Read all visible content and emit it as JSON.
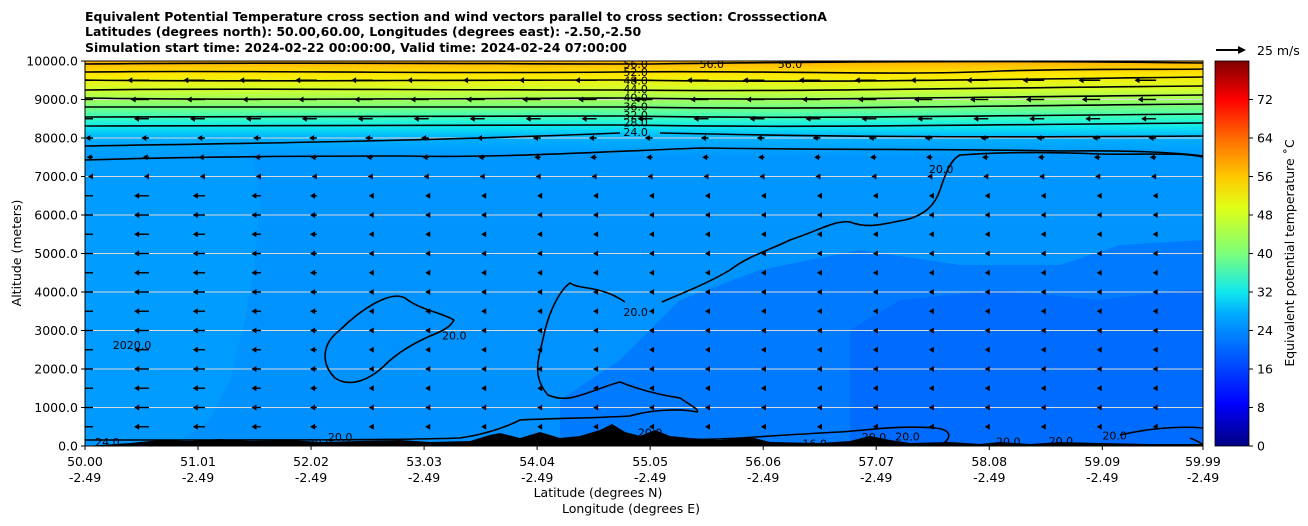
{
  "chart_data": {
    "type": "heatmap",
    "title_lines": [
      "Equivalent Potential Temperature cross section and wind vectors parallel to cross section: CrosssectionA",
      "Latitudes (degrees north): 50.00,60.00, Longitudes (degrees east): -2.50,-2.50",
      "Simulation start time: 2024-02-22 00:00:00, Valid time: 2024-02-24 07:00:00"
    ],
    "ylabel": "Altitude (meters)",
    "xlabel_lat": "Latitude (degrees N)",
    "xlabel_lon": "Longitude (degrees E)",
    "ylim": [
      0,
      10000
    ],
    "y_ticks": [
      "0.0",
      "1000.0",
      "2000.0",
      "3000.0",
      "4000.0",
      "5000.0",
      "6000.0",
      "7000.0",
      "8000.0",
      "9000.0",
      "10000.0"
    ],
    "x_ticks_lat": [
      "50.00",
      "51.01",
      "52.02",
      "53.03",
      "54.04",
      "55.05",
      "56.06",
      "57.07",
      "58.08",
      "59.09",
      "59.99"
    ],
    "x_ticks_lon": [
      "-2.49",
      "-2.49",
      "-2.49",
      "-2.49",
      "-2.49",
      "-2.49",
      "-2.49",
      "-2.49",
      "-2.49",
      "-2.49",
      "-2.49"
    ],
    "grid_y": true,
    "colorbar": {
      "label": "Equivalent potential temperature ˚C",
      "range": [
        0,
        80
      ],
      "ticks": [
        "0",
        "8",
        "16",
        "24",
        "32",
        "40",
        "48",
        "56",
        "64",
        "72"
      ]
    },
    "wind_key": {
      "label": "25 m/s",
      "speed": 25
    },
    "contour_labels": [
      {
        "text": "56.0",
        "lat": 54.92,
        "alt": 9920
      },
      {
        "text": "52.0",
        "lat": 54.92,
        "alt": 9720
      },
      {
        "text": "48.0",
        "lat": 54.92,
        "alt": 9500
      },
      {
        "text": "44.0",
        "lat": 54.92,
        "alt": 9270
      },
      {
        "text": "40.0",
        "lat": 54.92,
        "alt": 9050
      },
      {
        "text": "36.0",
        "lat": 54.92,
        "alt": 8820
      },
      {
        "text": "32.0",
        "lat": 54.92,
        "alt": 8600
      },
      {
        "text": "28.0",
        "lat": 54.92,
        "alt": 8400
      },
      {
        "text": "24.0",
        "lat": 54.92,
        "alt": 8150
      },
      {
        "text": "56.0",
        "lat": 55.6,
        "alt": 9920
      },
      {
        "text": "56.0",
        "lat": 56.3,
        "alt": 9920
      },
      {
        "text": "20.0",
        "lat": 54.92,
        "alt": 3480
      },
      {
        "text": "20.0",
        "lat": 53.3,
        "alt": 2870
      },
      {
        "text": "20.0",
        "lat": 57.65,
        "alt": 7200
      },
      {
        "text": "2020.0",
        "lat": 50.42,
        "alt": 2620
      },
      {
        "text": "24.0",
        "lat": 50.2,
        "alt": 110
      },
      {
        "text": "20.0",
        "lat": 52.1,
        "alt": 80
      },
      {
        "text": "20.0",
        "lat": 52.28,
        "alt": 230
      },
      {
        "text": "16.0",
        "lat": 56.52,
        "alt": 60
      },
      {
        "text": "20.0",
        "lat": 55.05,
        "alt": 350
      },
      {
        "text": "20.0",
        "lat": 57.05,
        "alt": 230
      },
      {
        "text": "20.0",
        "lat": 57.35,
        "alt": 250
      },
      {
        "text": "20.0",
        "lat": 58.25,
        "alt": 120
      },
      {
        "text": "20.0",
        "lat": 58.72,
        "alt": 130
      },
      {
        "text": "20.0",
        "lat": 59.2,
        "alt": 270
      }
    ]
  }
}
